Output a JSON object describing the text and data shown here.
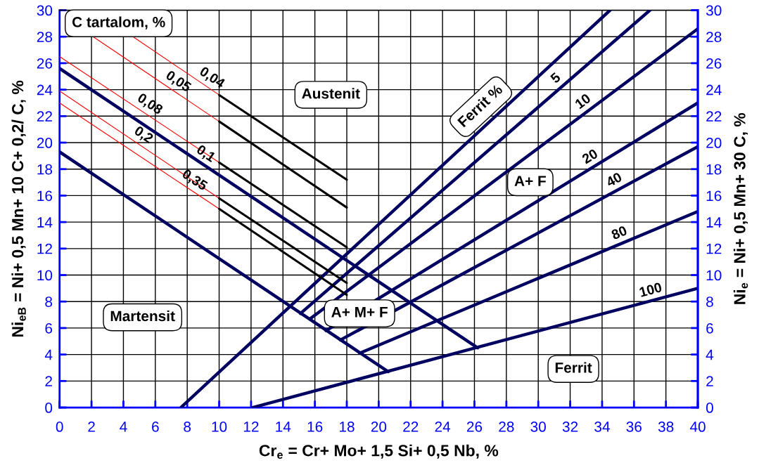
{
  "chart_data": {
    "type": "line",
    "xlabel": "Cr$_{e}$ = Cr+ Mo+ 1,5 Si+ 0,5 Nb, %",
    "ylabel": "Ni$_{eB}$ = Ni+ 0,5 Mn+ 10 C+ 0,2/ C, %",
    "y2label": "Ni$_{e}$ = Ni+ 0,5 Mn+ 30 C, %",
    "xlim": [
      0,
      40
    ],
    "xticks": [
      0,
      2,
      4,
      6,
      8,
      10,
      12,
      14,
      16,
      18,
      20,
      22,
      24,
      26,
      28,
      30,
      32,
      34,
      36,
      38,
      40
    ],
    "ylim": [
      0,
      30
    ],
    "yticks": [
      0,
      2,
      4,
      6,
      8,
      10,
      12,
      14,
      16,
      18,
      20,
      22,
      24,
      26,
      28,
      30
    ],
    "y2lim": [
      0,
      30
    ],
    "y2ticks": [
      0,
      2,
      4,
      6,
      8,
      10,
      12,
      14,
      16,
      18,
      20,
      22,
      24,
      26,
      28,
      30
    ],
    "grid": true,
    "line_style": "solid",
    "series": [
      {
        "name": "0,1",
        "color": "#000060",
        "x": [
          0,
          26.2
        ],
        "values": [
          25.6,
          4.5
        ]
      },
      {
        "color": "#000060",
        "x": [
          0,
          20.6
        ],
        "values": [
          19.3,
          2.7
        ]
      },
      {
        "color": "#000060",
        "x": [
          7.6,
          34.5
        ],
        "values": [
          0,
          30
        ]
      },
      {
        "name": "5",
        "color": "#000060",
        "x": [
          15.1,
          37.0
        ],
        "values": [
          7.1,
          30
        ]
      },
      {
        "name": "10",
        "color": "#000060",
        "x": [
          15.7,
          40
        ],
        "values": [
          6.7,
          28.6
        ]
      },
      {
        "name": "20",
        "color": "#000060",
        "x": [
          16.7,
          40
        ],
        "values": [
          5.8,
          23.0
        ]
      },
      {
        "name": "40",
        "color": "#000060",
        "x": [
          17.6,
          40
        ],
        "values": [
          5.1,
          19.7
        ]
      },
      {
        "name": "80",
        "color": "#000060",
        "x": [
          18.8,
          40
        ],
        "values": [
          4.1,
          14.8
        ]
      },
      {
        "name": "100",
        "color": "#000060",
        "x": [
          12.1,
          40
        ],
        "values": [
          0,
          9.0
        ]
      },
      {
        "name": "0,04",
        "color": "#ff0000",
        "x": [
          4.6,
          10
        ],
        "values": [
          28,
          23.6
        ]
      },
      {
        "name": "0,05",
        "color": "#ff0000",
        "x": [
          2.1,
          10
        ],
        "values": [
          28,
          21.6
        ]
      },
      {
        "name": "0,08",
        "color": "#ff0000",
        "x": [
          0,
          10
        ],
        "values": [
          26.5,
          18.5
        ]
      },
      {
        "name": "0,2",
        "color": "#ff0000",
        "x": [
          0,
          10
        ],
        "values": [
          23.9,
          15.8
        ]
      },
      {
        "name": "0,35",
        "color": "#ff0000",
        "x": [
          0,
          10
        ],
        "values": [
          23.0,
          15.0
        ]
      },
      {
        "color": "#000000",
        "x": [
          10,
          18
        ],
        "values": [
          23.6,
          17.2
        ]
      },
      {
        "color": "#000000",
        "x": [
          10,
          18
        ],
        "values": [
          21.6,
          15.1
        ]
      },
      {
        "color": "#000000",
        "x": [
          10,
          18
        ],
        "values": [
          18.5,
          12.1
        ]
      },
      {
        "color": "#000000",
        "x": [
          10,
          18
        ],
        "values": [
          15.8,
          9.4
        ]
      },
      {
        "color": "#000000",
        "x": [
          10,
          18
        ],
        "values": [
          15.0,
          8.5
        ]
      }
    ],
    "annotations": [
      "C tartalom, %",
      "Austenit",
      "Ferrit %",
      "A+ F",
      "A+ M+ F",
      "Martensit",
      "Ferrit"
    ]
  }
}
